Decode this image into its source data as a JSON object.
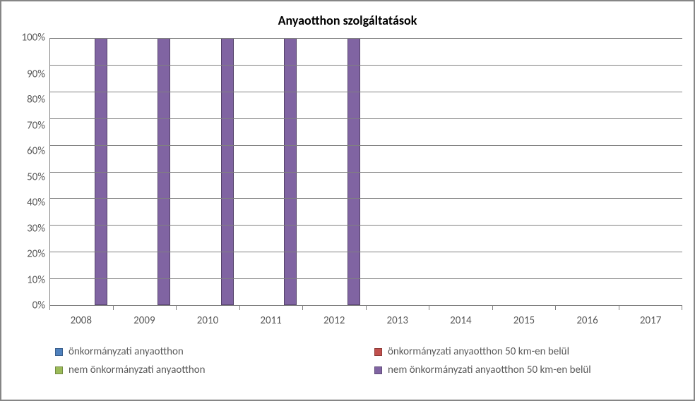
{
  "chart": {
    "type": "bar",
    "title": "Anyaotthon szolgáltatások",
    "title_fontsize": 18,
    "title_color": "#000000",
    "background_color": "#ffffff",
    "border_color": "#868686",
    "axis_line_color": "#808080",
    "grid_color": "#808080",
    "tick_font_color": "#595959",
    "tick_fontsize": 15,
    "ylim": [
      0,
      100
    ],
    "ytick_step": 10,
    "y_tick_labels": [
      "100%",
      "90%",
      "80%",
      "70%",
      "60%",
      "50%",
      "40%",
      "30%",
      "20%",
      "10%",
      "0%"
    ],
    "categories": [
      "2008",
      "2009",
      "2010",
      "2011",
      "2012",
      "2013",
      "2014",
      "2015",
      "2016",
      "2017"
    ],
    "series": [
      {
        "name": "önkormányzati anyaotthon",
        "color": "#4f81bd",
        "values": [
          0,
          0,
          0,
          0,
          0,
          0,
          0,
          0,
          0,
          0
        ]
      },
      {
        "name": "önkormányzati anyaotthon 50 km-en belül",
        "color": "#c0504d",
        "values": [
          0,
          0,
          0,
          0,
          0,
          0,
          0,
          0,
          0,
          0
        ]
      },
      {
        "name": "nem önkormányzati anyaotthon",
        "color": "#9bbb59",
        "values": [
          0,
          0,
          0,
          0,
          0,
          0,
          0,
          0,
          0,
          0
        ]
      },
      {
        "name": "nem önkormányzati anyaotthon 50 km-en belül",
        "color": "#8064a2",
        "values": [
          100,
          100,
          100,
          100,
          100,
          0,
          0,
          0,
          0,
          0
        ]
      }
    ],
    "legend_position": "bottom",
    "legend_columns": 2,
    "bar_group_width_pct": 80
  }
}
